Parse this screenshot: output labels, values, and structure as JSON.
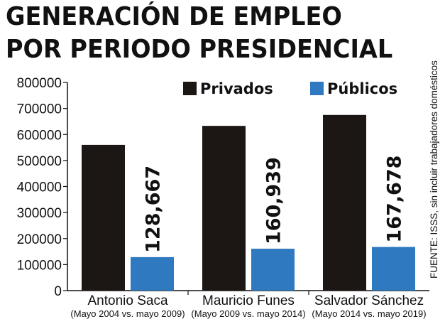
{
  "title_line1": "GENERACIÓN DE EMPLEO",
  "title_line2": "POR PERIODO PRESIDENCIAL",
  "source": "FUENTE: ISSS, sin incluir trabajadores domésticos",
  "colors": {
    "privados": "#1c1614",
    "publicos": "#2f79c0"
  },
  "chart_data": {
    "type": "bar",
    "title": "GENERACIÓN DE EMPLEO POR PERIODO PRESIDENCIAL",
    "categories": [
      "Antonio Saca",
      "Mauricio Funes",
      "Salvador Sánchez"
    ],
    "subcategories": [
      "(Mayo 2004 vs. mayo 2009)",
      "(Mayo 2009 vs. mayo 2014)",
      "(Mayo 2014 vs. mayo 2019)"
    ],
    "series": [
      {
        "name": "Privados",
        "values": [
          560000,
          633000,
          675000
        ],
        "data_labels": [
          null,
          null,
          null
        ]
      },
      {
        "name": "Públicos",
        "values": [
          128667,
          160939,
          167678
        ],
        "data_labels": [
          "128,667",
          "160,939",
          "167,678"
        ]
      }
    ],
    "ylim": [
      0,
      800000
    ],
    "yticks": [
      "0",
      "100000",
      "200000",
      "300000",
      "400000",
      "500000",
      "600000",
      "700000",
      "800000"
    ],
    "legend_position": "top-right",
    "grid": false,
    "xlabel": "",
    "ylabel": ""
  }
}
